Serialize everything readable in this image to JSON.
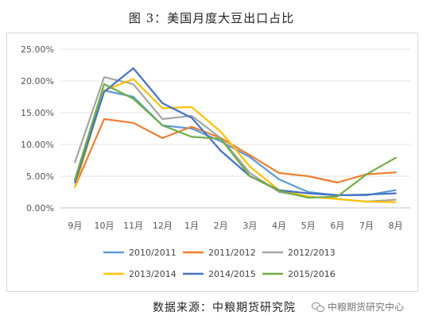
{
  "title": "图 3：美国月度大豆出口占比",
  "source": "数据来源：中粮期货研究院",
  "watermark": {
    "text": "中粮期货研究中心",
    "icon": "wechat-icon"
  },
  "chart_data": {
    "type": "line",
    "categories": [
      "9月",
      "10月",
      "11月",
      "12月",
      "1月",
      "2月",
      "3月",
      "4月",
      "5月",
      "6月",
      "7月",
      "8月"
    ],
    "y_ticks": [
      "0.00%",
      "5.00%",
      "10.00%",
      "15.00%",
      "20.00%",
      "25.00%"
    ],
    "ylim": [
      0,
      25
    ],
    "grid": true,
    "legend_position": "bottom",
    "series": [
      {
        "name": "2010/2011",
        "color": "#5b9bd5",
        "values": [
          4.2,
          18.5,
          17.5,
          13.0,
          12.5,
          10.5,
          8.0,
          4.5,
          2.5,
          2.0,
          2.0,
          2.8
        ]
      },
      {
        "name": "2011/2012",
        "color": "#ed7d31",
        "values": [
          3.3,
          14.0,
          13.4,
          11.0,
          12.8,
          11.0,
          8.3,
          5.5,
          5.0,
          4.0,
          5.3,
          5.6
        ]
      },
      {
        "name": "2012/2013",
        "color": "#a5a5a5",
        "values": [
          7.2,
          20.6,
          19.5,
          14.0,
          14.5,
          11.0,
          5.5,
          2.5,
          1.8,
          1.4,
          1.0,
          1.3
        ]
      },
      {
        "name": "2013/2014",
        "color": "#ffc000",
        "values": [
          3.3,
          18.5,
          20.3,
          15.7,
          15.9,
          12.0,
          6.5,
          2.8,
          1.8,
          1.4,
          1.0,
          0.9
        ]
      },
      {
        "name": "2014/2015",
        "color": "#4472c4",
        "values": [
          4.0,
          18.3,
          22.0,
          16.5,
          14.2,
          9.0,
          5.0,
          2.8,
          2.3,
          2.0,
          2.1,
          2.3
        ]
      },
      {
        "name": "2015/2016",
        "color": "#70ad47",
        "values": [
          4.5,
          19.5,
          17.2,
          13.0,
          11.2,
          10.9,
          5.0,
          2.7,
          1.6,
          1.8,
          5.3,
          7.9
        ]
      }
    ]
  }
}
